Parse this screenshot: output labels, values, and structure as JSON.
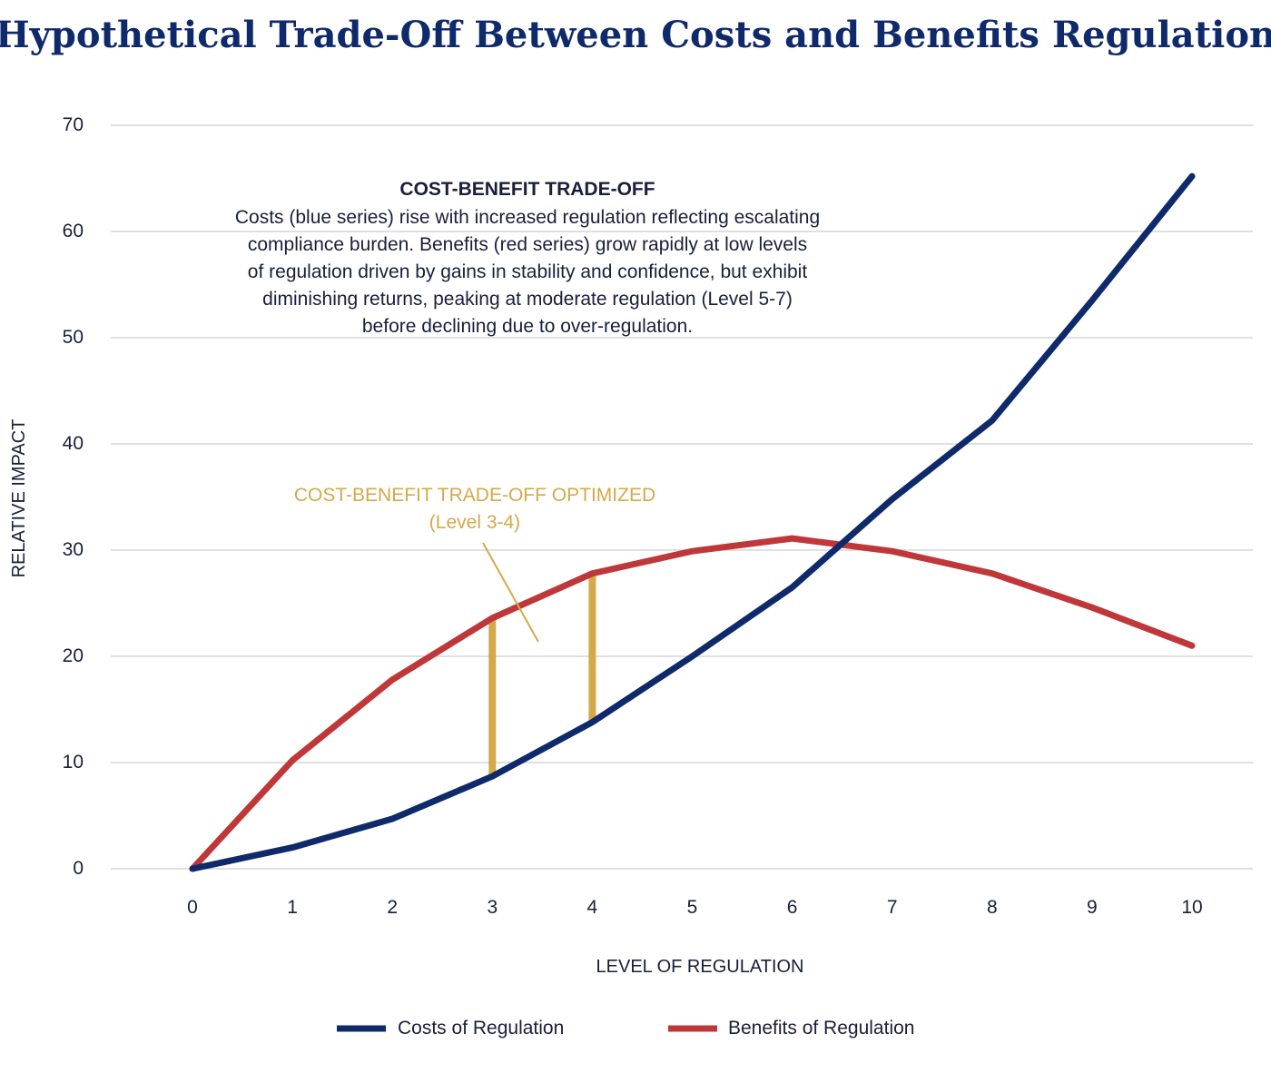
{
  "chart_data": {
    "type": "line",
    "title": "Hypothetical Trade-Off Between Costs and Benefits Regulation",
    "xlabel": "LEVEL OF REGULATION",
    "ylabel": "RELATIVE IMPACT",
    "x": [
      0,
      1,
      2,
      3,
      4,
      5,
      6,
      7,
      8,
      9,
      10
    ],
    "x_ticks": [
      "0",
      "1",
      "2",
      "3",
      "4",
      "5",
      "6",
      "7",
      "8",
      "9",
      "10"
    ],
    "y_ticks": [
      "0",
      "10",
      "20",
      "30",
      "40",
      "50",
      "60",
      "70"
    ],
    "ylim": [
      0,
      70
    ],
    "grid": "horizontal",
    "legend_position": "bottom",
    "series": [
      {
        "name": "Costs of Regulation",
        "color": "#0f2a6b",
        "values": [
          0,
          2,
          4.7,
          8.7,
          13.8,
          20,
          26.5,
          34.8,
          42.2,
          53.5,
          65.2
        ]
      },
      {
        "name": "Benefits of Regulation",
        "color": "#c0373a",
        "values": [
          0,
          10.2,
          17.8,
          23.6,
          27.8,
          29.9,
          31.1,
          29.9,
          27.8,
          24.6,
          21
        ]
      }
    ],
    "highlight_bars": {
      "color": "#d4a94a",
      "x": [
        3,
        4
      ]
    },
    "annotations": {
      "tradeoff_heading": "COST-BENEFIT TRADE-OFF",
      "tradeoff_lines": [
        "Costs (blue series) rise with increased regulation reflecting escalating",
        "compliance burden. Benefits (red series) grow rapidly at low levels",
        "of regulation driven by gains in stability and confidence, but exhibit",
        "diminishing returns, peaking at moderate regulation (Level 5-7)",
        "before declining due to over-regulation."
      ],
      "optimized_line1": "COST-BENEFIT TRADE-OFF OPTIMIZED",
      "optimized_line2": "(Level 3-4)",
      "optimized_color": "#d4a94a"
    },
    "colors": {
      "title": "#0f2a6b",
      "text": "#1a1f3a",
      "grid": "#d6d6d6"
    }
  }
}
